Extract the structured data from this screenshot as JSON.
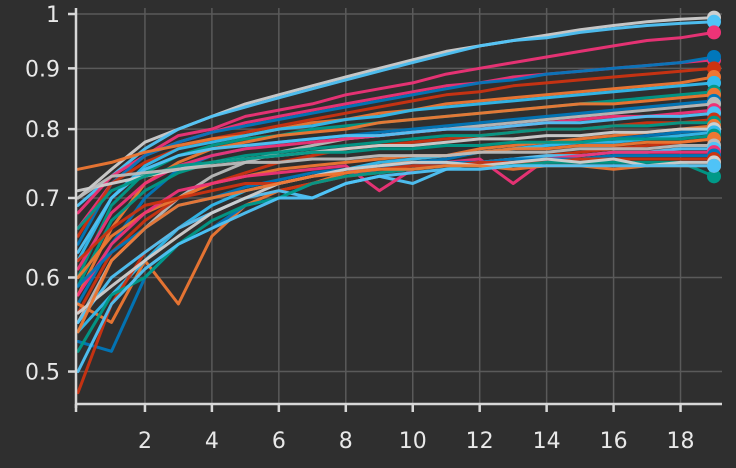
{
  "chart_data": {
    "type": "line",
    "title": "",
    "xlabel": "",
    "ylabel": "",
    "background": "#2f2f2f",
    "grid": true,
    "yscale": "log",
    "xlim": [
      0,
      19
    ],
    "ylim": [
      0.475,
      1.0
    ],
    "x_ticks": [
      2,
      4,
      6,
      8,
      10,
      12,
      14,
      16,
      18
    ],
    "x_tick_labels": [
      "2",
      "4",
      "6",
      "8",
      "10",
      "12",
      "14",
      "16",
      "18"
    ],
    "y_ticks": [
      0.5,
      0.6,
      0.7,
      0.8,
      0.9,
      1.0
    ],
    "y_tick_labels": [
      "0.5",
      "0.6",
      "0.7",
      "0.8",
      "0.9",
      "1"
    ],
    "x": [
      0,
      1,
      2,
      3,
      4,
      5,
      6,
      7,
      8,
      9,
      10,
      11,
      12,
      13,
      14,
      15,
      16,
      17,
      18,
      19
    ],
    "series": [
      {
        "color": "#cfcfcf",
        "values": [
          0.7,
          0.74,
          0.78,
          0.8,
          0.82,
          0.84,
          0.855,
          0.87,
          0.885,
          0.9,
          0.915,
          0.93,
          0.94,
          0.95,
          0.96,
          0.97,
          0.978,
          0.985,
          0.99,
          0.993
        ]
      },
      {
        "color": "#4fc3f7",
        "values": [
          0.69,
          0.73,
          0.77,
          0.8,
          0.82,
          0.835,
          0.85,
          0.865,
          0.88,
          0.895,
          0.91,
          0.925,
          0.94,
          0.95,
          0.955,
          0.965,
          0.972,
          0.978,
          0.982,
          0.985
        ]
      },
      {
        "color": "#ee3377",
        "values": [
          0.66,
          0.72,
          0.76,
          0.79,
          0.8,
          0.82,
          0.83,
          0.84,
          0.855,
          0.865,
          0.875,
          0.89,
          0.9,
          0.91,
          0.92,
          0.93,
          0.94,
          0.95,
          0.955,
          0.965
        ]
      },
      {
        "color": "#ee3377",
        "values": [
          0.68,
          0.73,
          0.76,
          0.78,
          0.795,
          0.81,
          0.82,
          0.83,
          0.84,
          0.85,
          0.86,
          0.87,
          0.875,
          0.885,
          0.89,
          0.895,
          0.9,
          0.905,
          0.91,
          0.915
        ]
      },
      {
        "color": "#0077bb",
        "values": [
          0.64,
          0.72,
          0.76,
          0.78,
          0.795,
          0.805,
          0.815,
          0.825,
          0.835,
          0.845,
          0.855,
          0.865,
          0.875,
          0.88,
          0.89,
          0.895,
          0.9,
          0.905,
          0.91,
          0.92
        ]
      },
      {
        "color": "#cc3311",
        "values": [
          0.65,
          0.72,
          0.75,
          0.77,
          0.785,
          0.795,
          0.805,
          0.815,
          0.825,
          0.835,
          0.845,
          0.855,
          0.86,
          0.87,
          0.875,
          0.88,
          0.885,
          0.89,
          0.895,
          0.9
        ]
      },
      {
        "color": "#ee7733",
        "values": [
          0.74,
          0.75,
          0.765,
          0.775,
          0.785,
          0.79,
          0.8,
          0.81,
          0.815,
          0.825,
          0.83,
          0.84,
          0.845,
          0.85,
          0.855,
          0.86,
          0.865,
          0.87,
          0.875,
          0.885
        ]
      },
      {
        "color": "#33bbee",
        "values": [
          0.62,
          0.7,
          0.745,
          0.77,
          0.78,
          0.79,
          0.8,
          0.805,
          0.815,
          0.82,
          0.83,
          0.835,
          0.84,
          0.845,
          0.85,
          0.855,
          0.86,
          0.865,
          0.87,
          0.875
        ]
      },
      {
        "color": "#009988",
        "values": [
          0.6,
          0.69,
          0.735,
          0.76,
          0.775,
          0.785,
          0.79,
          0.8,
          0.805,
          0.81,
          0.815,
          0.82,
          0.825,
          0.83,
          0.835,
          0.84,
          0.845,
          0.85,
          0.855,
          0.86
        ]
      },
      {
        "color": "#ee7733",
        "values": [
          0.58,
          0.66,
          0.72,
          0.75,
          0.77,
          0.78,
          0.79,
          0.795,
          0.8,
          0.81,
          0.815,
          0.82,
          0.825,
          0.83,
          0.835,
          0.84,
          0.84,
          0.845,
          0.85,
          0.855
        ]
      },
      {
        "color": "#0077bb",
        "values": [
          0.57,
          0.64,
          0.7,
          0.74,
          0.76,
          0.77,
          0.78,
          0.785,
          0.79,
          0.795,
          0.8,
          0.805,
          0.81,
          0.815,
          0.82,
          0.825,
          0.83,
          0.835,
          0.84,
          0.845
        ]
      },
      {
        "color": "#bbbbbb",
        "values": [
          0.55,
          0.62,
          0.66,
          0.7,
          0.73,
          0.75,
          0.765,
          0.775,
          0.785,
          0.79,
          0.795,
          0.8,
          0.805,
          0.81,
          0.815,
          0.82,
          0.825,
          0.83,
          0.835,
          0.84
        ]
      },
      {
        "color": "#ee3377",
        "values": [
          0.61,
          0.68,
          0.72,
          0.745,
          0.76,
          0.77,
          0.775,
          0.78,
          0.785,
          0.79,
          0.795,
          0.8,
          0.8,
          0.805,
          0.81,
          0.815,
          0.82,
          0.82,
          0.825,
          0.83
        ]
      },
      {
        "color": "#4fc3f7",
        "values": [
          0.63,
          0.7,
          0.74,
          0.76,
          0.77,
          0.775,
          0.78,
          0.785,
          0.79,
          0.79,
          0.795,
          0.8,
          0.8,
          0.805,
          0.81,
          0.81,
          0.815,
          0.82,
          0.82,
          0.825
        ]
      },
      {
        "color": "#cc3311",
        "values": [
          0.56,
          0.63,
          0.67,
          0.7,
          0.72,
          0.735,
          0.75,
          0.76,
          0.77,
          0.775,
          0.78,
          0.785,
          0.79,
          0.795,
          0.8,
          0.8,
          0.805,
          0.81,
          0.81,
          0.815
        ]
      },
      {
        "color": "#009988",
        "values": [
          0.59,
          0.67,
          0.71,
          0.735,
          0.75,
          0.76,
          0.765,
          0.77,
          0.775,
          0.78,
          0.785,
          0.79,
          0.79,
          0.795,
          0.8,
          0.8,
          0.805,
          0.805,
          0.81,
          0.81
        ]
      },
      {
        "color": "#ee7733",
        "values": [
          0.57,
          0.55,
          0.62,
          0.57,
          0.65,
          0.69,
          0.71,
          0.72,
          0.735,
          0.745,
          0.755,
          0.76,
          0.77,
          0.775,
          0.78,
          0.785,
          0.79,
          0.795,
          0.8,
          0.805
        ]
      },
      {
        "color": "#0077bb",
        "values": [
          0.53,
          0.52,
          0.6,
          0.64,
          0.66,
          0.69,
          0.7,
          0.72,
          0.73,
          0.74,
          0.75,
          0.755,
          0.765,
          0.77,
          0.775,
          0.78,
          0.785,
          0.79,
          0.795,
          0.8
        ]
      },
      {
        "color": "#cfcfcf",
        "values": [
          0.71,
          0.72,
          0.73,
          0.74,
          0.75,
          0.755,
          0.76,
          0.765,
          0.77,
          0.775,
          0.775,
          0.78,
          0.785,
          0.785,
          0.79,
          0.79,
          0.795,
          0.795,
          0.8,
          0.8
        ]
      },
      {
        "color": "#33bbee",
        "values": [
          0.54,
          0.58,
          0.62,
          0.66,
          0.69,
          0.71,
          0.72,
          0.73,
          0.74,
          0.75,
          0.755,
          0.76,
          0.765,
          0.77,
          0.775,
          0.78,
          0.78,
          0.785,
          0.79,
          0.795
        ]
      },
      {
        "color": "#cc3311",
        "values": [
          0.48,
          0.57,
          0.63,
          0.66,
          0.68,
          0.7,
          0.71,
          0.72,
          0.73,
          0.735,
          0.74,
          0.745,
          0.75,
          0.755,
          0.76,
          0.765,
          0.77,
          0.775,
          0.78,
          0.785
        ]
      },
      {
        "color": "#009988",
        "values": [
          0.66,
          0.71,
          0.73,
          0.745,
          0.75,
          0.755,
          0.76,
          0.765,
          0.765,
          0.77,
          0.77,
          0.775,
          0.775,
          0.78,
          0.78,
          0.78,
          0.785,
          0.785,
          0.785,
          0.79
        ]
      },
      {
        "color": "#ee7733",
        "values": [
          0.6,
          0.65,
          0.68,
          0.7,
          0.72,
          0.73,
          0.74,
          0.745,
          0.75,
          0.755,
          0.76,
          0.76,
          0.765,
          0.77,
          0.77,
          0.775,
          0.775,
          0.78,
          0.78,
          0.785
        ]
      },
      {
        "color": "#bbbbbb",
        "values": [
          0.7,
          0.73,
          0.735,
          0.74,
          0.745,
          0.75,
          0.75,
          0.755,
          0.755,
          0.76,
          0.76,
          0.76,
          0.765,
          0.765,
          0.765,
          0.77,
          0.77,
          0.77,
          0.775,
          0.775
        ]
      },
      {
        "color": "#4fc3f7",
        "values": [
          0.55,
          0.6,
          0.63,
          0.66,
          0.68,
          0.7,
          0.71,
          0.7,
          0.72,
          0.73,
          0.72,
          0.74,
          0.75,
          0.755,
          0.76,
          0.76,
          0.765,
          0.765,
          0.77,
          0.77
        ]
      },
      {
        "color": "#ee3377",
        "values": [
          0.58,
          0.64,
          0.68,
          0.71,
          0.72,
          0.73,
          0.735,
          0.74,
          0.745,
          0.71,
          0.74,
          0.75,
          0.755,
          0.72,
          0.755,
          0.76,
          0.765,
          0.765,
          0.765,
          0.765
        ]
      },
      {
        "color": "#0077bb",
        "values": [
          0.59,
          0.63,
          0.66,
          0.69,
          0.7,
          0.715,
          0.725,
          0.735,
          0.74,
          0.745,
          0.745,
          0.75,
          0.75,
          0.755,
          0.755,
          0.755,
          0.76,
          0.76,
          0.76,
          0.76
        ]
      },
      {
        "color": "#cc3311",
        "values": [
          0.62,
          0.66,
          0.69,
          0.7,
          0.71,
          0.72,
          0.72,
          0.73,
          0.735,
          0.74,
          0.745,
          0.745,
          0.75,
          0.75,
          0.75,
          0.755,
          0.755,
          0.755,
          0.755,
          0.755
        ]
      },
      {
        "color": "#009988",
        "values": [
          0.52,
          0.58,
          0.6,
          0.64,
          0.67,
          0.69,
          0.7,
          0.72,
          0.73,
          0.735,
          0.74,
          0.745,
          0.745,
          0.745,
          0.75,
          0.75,
          0.75,
          0.75,
          0.75,
          0.73
        ]
      },
      {
        "color": "#cfcfcf",
        "values": [
          0.56,
          0.59,
          0.62,
          0.65,
          0.68,
          0.7,
          0.72,
          0.73,
          0.74,
          0.745,
          0.75,
          0.75,
          0.745,
          0.75,
          0.755,
          0.75,
          0.755,
          0.745,
          0.75,
          0.75
        ]
      },
      {
        "color": "#ee7733",
        "values": [
          0.54,
          0.62,
          0.66,
          0.69,
          0.7,
          0.71,
          0.72,
          0.73,
          0.735,
          0.74,
          0.74,
          0.745,
          0.745,
          0.74,
          0.745,
          0.745,
          0.74,
          0.745,
          0.745,
          0.745
        ]
      },
      {
        "color": "#4fc3f7",
        "values": [
          0.5,
          0.57,
          0.61,
          0.64,
          0.66,
          0.68,
          0.7,
          0.7,
          0.72,
          0.73,
          0.735,
          0.74,
          0.74,
          0.745,
          0.745,
          0.745,
          0.745,
          0.745,
          0.745,
          0.745
        ]
      }
    ]
  }
}
